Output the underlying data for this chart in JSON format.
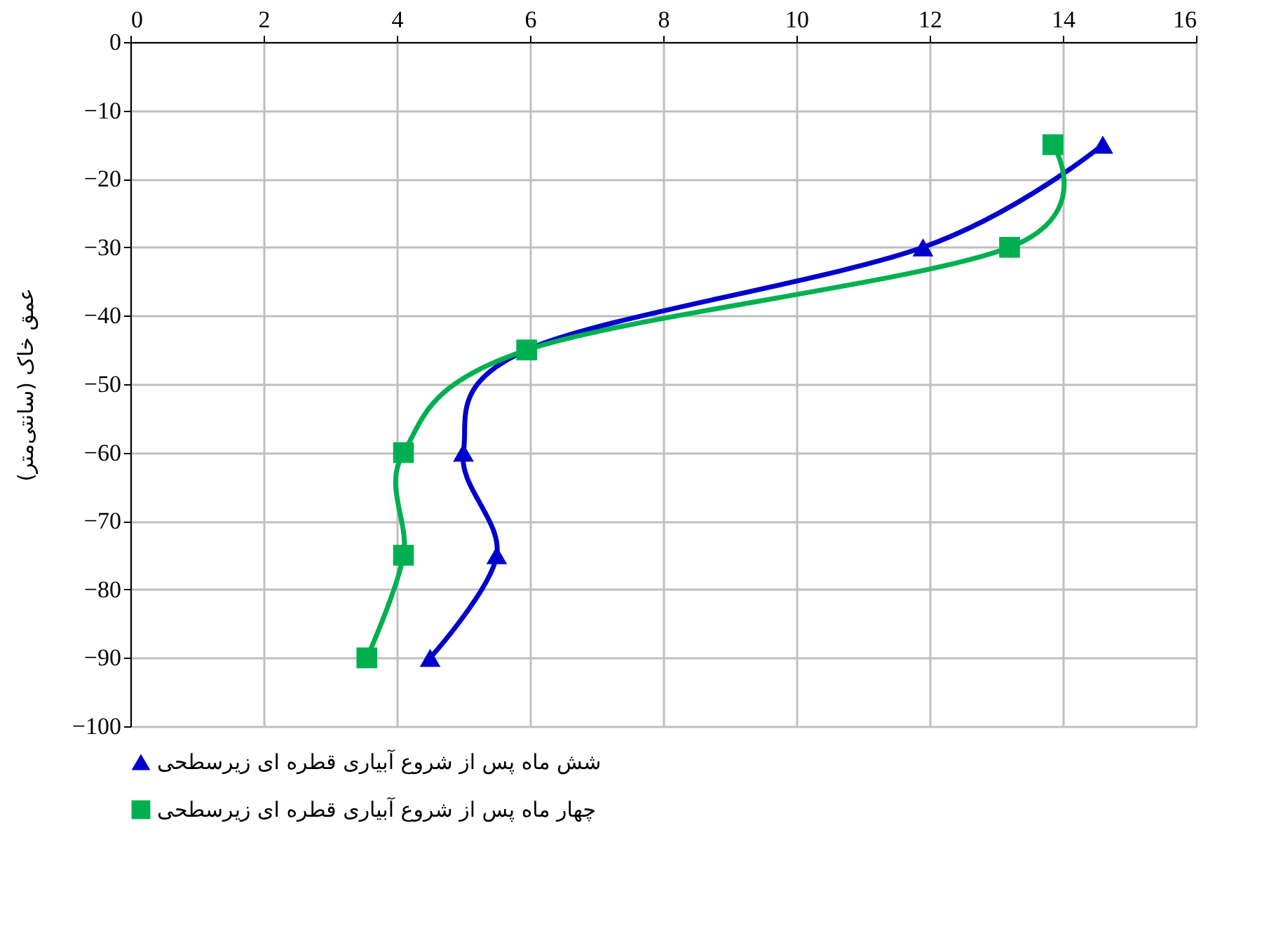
{
  "chart_data": {
    "type": "line",
    "ylabel": "عمق خاک (سانتی‌متر)",
    "xlim": [
      0,
      16
    ],
    "xticks": [
      0,
      2,
      4,
      6,
      8,
      10,
      12,
      14,
      16
    ],
    "ylim": [
      -100,
      0
    ],
    "yticks": [
      -100,
      -90,
      -80,
      -70,
      -60,
      -50,
      -40,
      -30,
      -20,
      -10,
      0
    ],
    "grid": true,
    "legend": "bottom",
    "series": [
      {
        "name": "شش ماه پس از شروع آبیاری قطره ای زیرسطحی",
        "color": "#0000cc",
        "marker": "triangle",
        "x": [
          14.6,
          11.9,
          5.95,
          5.0,
          5.5,
          4.5
        ],
        "values": [
          -15,
          -30,
          -45,
          -60,
          -75,
          -90
        ]
      },
      {
        "name": "چهار ماه پس از شروع آبیاری قطره ای زیرسطحی",
        "color": "#00b050",
        "marker": "square",
        "x": [
          13.85,
          13.2,
          5.95,
          4.1,
          4.1,
          3.55
        ],
        "values": [
          -15,
          -30,
          -45,
          -60,
          -75,
          -90
        ]
      }
    ]
  }
}
